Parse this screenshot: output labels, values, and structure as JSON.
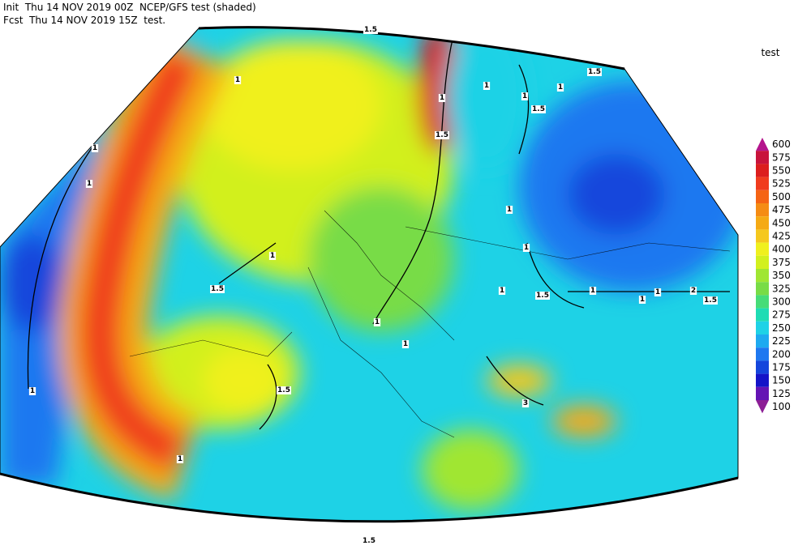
{
  "header": {
    "line1": "Init  Thu 14 NOV 2019 00Z  NCEP/GFS test (shaded)",
    "line2": "Fcst  Thu 14 NOV 2019 15Z  test."
  },
  "legend": {
    "title": "test",
    "levels": [
      600,
      575,
      550,
      525,
      500,
      475,
      450,
      425,
      400,
      375,
      350,
      325,
      300,
      275,
      250,
      225,
      200,
      175,
      150,
      125,
      100
    ],
    "colors": [
      "#b4148c",
      "#c8143c",
      "#dc1e1e",
      "#f03c1e",
      "#f56414",
      "#f58c14",
      "#f5aa14",
      "#f5c81e",
      "#f0f01e",
      "#d2f01e",
      "#a0e632",
      "#78dc46",
      "#46dc78",
      "#1edcb4",
      "#1ed2e6",
      "#1eaaf0",
      "#1e78f0",
      "#1446dc",
      "#1414c8",
      "#6414b4",
      "#8c1e96"
    ]
  },
  "contour_labels": [
    "1.5",
    "1",
    "1",
    "1",
    "1",
    "1.5",
    "1",
    "1.5",
    "1",
    "1",
    "1",
    "1",
    "1.5",
    "1.5",
    "1",
    "1",
    "1.5",
    "1",
    "1",
    "2",
    "1.5",
    "1",
    "1",
    "1",
    "1.5",
    "1",
    "3",
    "1",
    "1.5"
  ]
}
